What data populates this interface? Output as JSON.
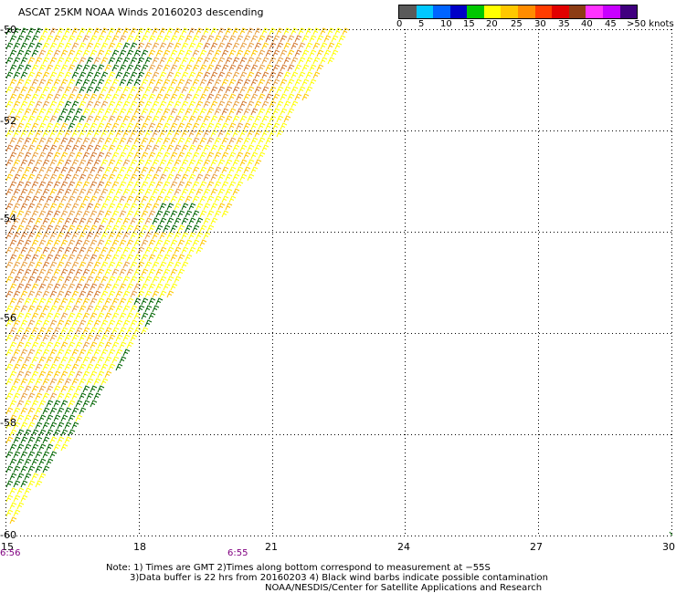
{
  "title": "ASCAT 25KM NOAA Winds 20160203 descending",
  "legend": {
    "labels": [
      "0",
      "5",
      "10",
      "15",
      "20",
      "25",
      "30",
      "35",
      "40",
      "45"
    ],
    "unit": ">50 knots",
    "colors": [
      "#5a5a5a",
      "#00c8ff",
      "#0064ff",
      "#0000c8",
      "#00c800",
      "#ffff00",
      "#ffc800",
      "#ff8c00",
      "#ff3c00",
      "#e10000",
      "#8c3c14",
      "#ff32ff",
      "#c800ff",
      "#40007f"
    ]
  },
  "axes": {
    "x_ticks": [
      "15",
      "18",
      "21",
      "24",
      "27",
      "30"
    ],
    "y_ticks": [
      "-50",
      "-52",
      "-54",
      "-56",
      "-58",
      "-60"
    ]
  },
  "time_labels": [
    "6:56",
    "6:55"
  ],
  "notes": {
    "line1": "Note: 1) Times are GMT 2)Times along bottom correspond to measurement at −55S",
    "line2": "3)Data buffer is 22 hrs from 20160203 4) Black wind barbs indicate possible contamination",
    "line3": "NOAA/NESDIS/Center for Satellite Applications and Research"
  },
  "map": {
    "lon_range": [
      15,
      30
    ],
    "lat_range": [
      -60,
      -50
    ],
    "swath_edge": "diagonal from -50 near 22.8E to -60 near 15E",
    "barb_colors": {
      "yellow": "#ffff00",
      "light_orange": "#ffc800",
      "orange": "#e8a040",
      "dark_orange": "#d27830",
      "green": "#006400"
    }
  }
}
